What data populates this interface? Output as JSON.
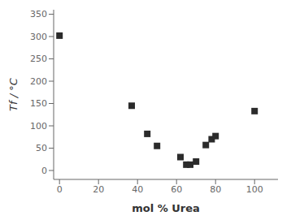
{
  "chart_data": {
    "type": "scatter",
    "x": [
      0,
      37,
      45,
      50,
      62,
      65,
      67,
      70,
      75,
      78,
      80,
      100
    ],
    "values": [
      302,
      145,
      82,
      55,
      30,
      13,
      13,
      20,
      57,
      70,
      77,
      133
    ],
    "color": "#2b2b2b",
    "marker": "square",
    "xlabel": "mol % Urea",
    "ylabel": "Tf / °C",
    "xlim": [
      -3,
      112
    ],
    "ylim": [
      -20,
      360
    ],
    "xticks": [
      0,
      20,
      40,
      60,
      80,
      100
    ],
    "yticks": [
      0,
      50,
      100,
      150,
      200,
      250,
      300,
      350
    ],
    "grid": false
  }
}
